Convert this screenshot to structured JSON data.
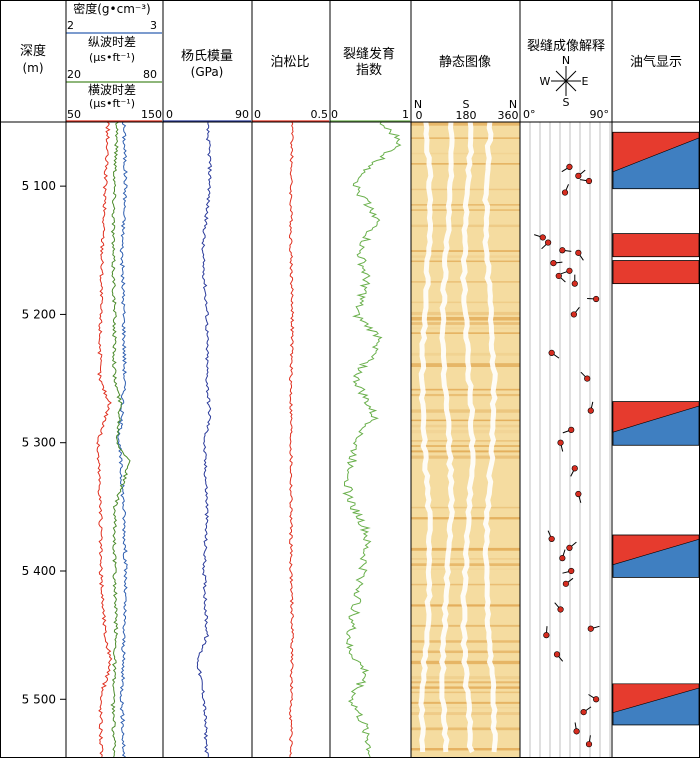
{
  "header": {
    "depth_title": "深度",
    "depth_unit": "(m)",
    "density": {
      "label": "密度(g•cm⁻³)",
      "min": "2",
      "max": "3",
      "color": "#2f5fb0"
    },
    "p_wave": {
      "label": "纵波时差",
      "unit": "(μs•ft⁻¹)",
      "min": "20",
      "max": "80",
      "color": "#4a8a2a"
    },
    "s_wave": {
      "label": "横波时差",
      "unit": "(μs•ft⁻¹)",
      "min": "50",
      "max": "150",
      "color": "#e03020"
    },
    "youngs": {
      "label": "杨氏模量",
      "unit": "(GPa)",
      "min": "0",
      "max": "90",
      "color": "#2a3a9a"
    },
    "poisson": {
      "label": "泊松比",
      "min": "0",
      "max": "0.5",
      "color": "#e03020"
    },
    "fracture_index": {
      "label_line1": "裂缝发育",
      "label_line2": "指数",
      "min": "0",
      "max": "1",
      "color": "#6ab04c"
    },
    "static_image": {
      "label": "静态图像",
      "ticks": [
        "N",
        "S",
        "N"
      ],
      "values": [
        "0",
        "180",
        "360"
      ]
    },
    "fracture_interp": {
      "label": "裂缝成像解释",
      "compass": {
        "n": "N",
        "s": "S",
        "e": "E",
        "w": "W"
      },
      "min": "0°",
      "max": "90°"
    },
    "oil_gas": {
      "label": "油气显示"
    }
  },
  "chart_data": {
    "type": "line",
    "depth_range": [
      5050,
      5545
    ],
    "depth_ticks": [
      "5 100",
      "5 200",
      "5 300",
      "5 400",
      "5 500"
    ],
    "depth_tick_values": [
      5100,
      5200,
      5300,
      5400,
      5500
    ],
    "series": [
      {
        "name": "密度",
        "track": 1,
        "range": [
          2,
          3
        ],
        "color": "#2f5fb0",
        "depth": [
          5050,
          5100,
          5150,
          5200,
          5250,
          5300,
          5350,
          5400,
          5450,
          5500,
          5545
        ],
        "values": [
          2.6,
          2.62,
          2.58,
          2.6,
          2.61,
          2.55,
          2.6,
          2.62,
          2.6,
          2.58,
          2.6
        ]
      },
      {
        "name": "纵波时差",
        "track": 1,
        "range": [
          20,
          80
        ],
        "color": "#4a8a2a",
        "depth": [
          5050,
          5100,
          5150,
          5200,
          5250,
          5270,
          5300,
          5315,
          5350,
          5400,
          5450,
          5500,
          5545
        ],
        "values": [
          52,
          50,
          49,
          50,
          50,
          54,
          52,
          60,
          50,
          50,
          51,
          49,
          50
        ]
      },
      {
        "name": "横波时差",
        "track": 1,
        "range": [
          50,
          150
        ],
        "color": "#e03020",
        "depth": [
          5050,
          5100,
          5150,
          5200,
          5250,
          5270,
          5300,
          5350,
          5400,
          5450,
          5470,
          5500,
          5545
        ],
        "values": [
          93,
          90,
          87,
          85,
          84,
          95,
          82,
          85,
          85,
          90,
          96,
          85,
          86
        ]
      },
      {
        "name": "杨氏模量",
        "track": 2,
        "range": [
          0,
          90
        ],
        "color": "#2a3a9a",
        "depth": [
          5050,
          5080,
          5100,
          5150,
          5200,
          5250,
          5280,
          5300,
          5350,
          5400,
          5450,
          5470,
          5500,
          5545
        ],
        "values": [
          45,
          48,
          48,
          40,
          45,
          45,
          48,
          42,
          45,
          42,
          45,
          35,
          42,
          45
        ]
      },
      {
        "name": "泊松比",
        "track": 3,
        "range": [
          0,
          0.5
        ],
        "color": "#e03020",
        "depth": [
          5050,
          5100,
          5150,
          5200,
          5250,
          5300,
          5350,
          5400,
          5450,
          5500,
          5545
        ],
        "values": [
          0.26,
          0.25,
          0.25,
          0.26,
          0.25,
          0.25,
          0.25,
          0.25,
          0.26,
          0.25,
          0.25
        ]
      },
      {
        "name": "裂缝发育指数",
        "track": 4,
        "range": [
          0,
          1
        ],
        "color": "#6ab04c",
        "depth": [
          5050,
          5065,
          5085,
          5100,
          5125,
          5150,
          5175,
          5200,
          5220,
          5250,
          5280,
          5300,
          5340,
          5370,
          5400,
          5430,
          5460,
          5480,
          5500,
          5525,
          5545
        ],
        "values": [
          0.6,
          0.9,
          0.5,
          0.3,
          0.6,
          0.35,
          0.45,
          0.3,
          0.65,
          0.3,
          0.55,
          0.3,
          0.2,
          0.45,
          0.4,
          0.3,
          0.2,
          0.45,
          0.25,
          0.45,
          0.5
        ]
      }
    ],
    "fractures": [
      {
        "depth": 5085,
        "dip": 50
      },
      {
        "depth": 5092,
        "dip": 60
      },
      {
        "depth": 5096,
        "dip": 72
      },
      {
        "depth": 5105,
        "dip": 45
      },
      {
        "depth": 5140,
        "dip": 20
      },
      {
        "depth": 5144,
        "dip": 26
      },
      {
        "depth": 5150,
        "dip": 42
      },
      {
        "depth": 5152,
        "dip": 60
      },
      {
        "depth": 5160,
        "dip": 32
      },
      {
        "depth": 5166,
        "dip": 50
      },
      {
        "depth": 5170,
        "dip": 38
      },
      {
        "depth": 5176,
        "dip": 56
      },
      {
        "depth": 5188,
        "dip": 80
      },
      {
        "depth": 5200,
        "dip": 55
      },
      {
        "depth": 5230,
        "dip": 30
      },
      {
        "depth": 5250,
        "dip": 70
      },
      {
        "depth": 5275,
        "dip": 74
      },
      {
        "depth": 5290,
        "dip": 52
      },
      {
        "depth": 5300,
        "dip": 40
      },
      {
        "depth": 5320,
        "dip": 56
      },
      {
        "depth": 5340,
        "dip": 60
      },
      {
        "depth": 5375,
        "dip": 30
      },
      {
        "depth": 5382,
        "dip": 50
      },
      {
        "depth": 5390,
        "dip": 42
      },
      {
        "depth": 5400,
        "dip": 52
      },
      {
        "depth": 5410,
        "dip": 46
      },
      {
        "depth": 5430,
        "dip": 40
      },
      {
        "depth": 5445,
        "dip": 74
      },
      {
        "depth": 5450,
        "dip": 24
      },
      {
        "depth": 5465,
        "dip": 36
      },
      {
        "depth": 5500,
        "dip": 80
      },
      {
        "depth": 5510,
        "dip": 66
      },
      {
        "depth": 5525,
        "dip": 58
      },
      {
        "depth": 5535,
        "dip": 72
      }
    ],
    "oil_gas_zones": [
      {
        "top": 5058,
        "bottom": 5102,
        "type": "oil-water"
      },
      {
        "top": 5137,
        "bottom": 5155,
        "type": "oil"
      },
      {
        "top": 5158,
        "bottom": 5176,
        "type": "oil"
      },
      {
        "top": 5268,
        "bottom": 5302,
        "type": "oil-water"
      },
      {
        "top": 5372,
        "bottom": 5405,
        "type": "oil-water"
      },
      {
        "top": 5488,
        "bottom": 5520,
        "type": "oil-water"
      }
    ],
    "colors": {
      "oil": "#e63b2e",
      "water": "#3f7fc1",
      "image_bg": "#f5dca0",
      "image_dark": "#d8902e",
      "sine": "#ffffff"
    }
  }
}
